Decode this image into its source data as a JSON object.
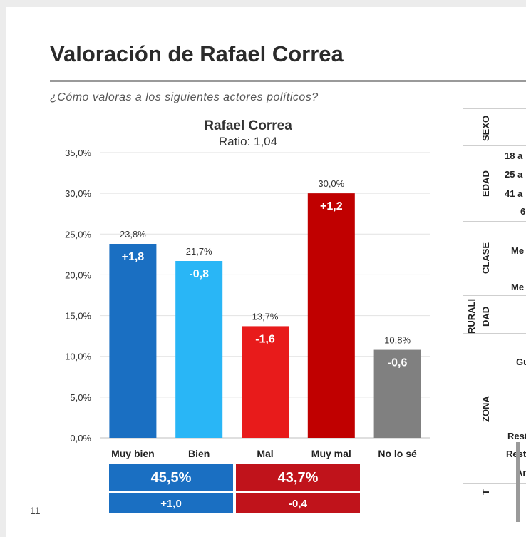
{
  "header": {
    "title": "Valoración de Rafael Correa",
    "subtitle": "¿Cómo valoras a los siguientes actores políticos?"
  },
  "chart_data": {
    "type": "bar",
    "title": "Rafael Correa",
    "subtitle": "Ratio: 1,04",
    "categories": [
      "Muy bien",
      "Bien",
      "Mal",
      "Muy mal",
      "No lo sé"
    ],
    "values": [
      23.8,
      21.7,
      13.7,
      30.0,
      10.8
    ],
    "value_labels": [
      "23,8%",
      "21,7%",
      "13,7%",
      "30,0%",
      "10,8%"
    ],
    "change_labels": [
      "+1,8",
      "-0,8",
      "-1,6",
      "+1,2",
      "-0,6"
    ],
    "colors": [
      "#1a6fc2",
      "#29b6f6",
      "#e81b1b",
      "#c00000",
      "#808080"
    ],
    "ylim": [
      0,
      35
    ],
    "yticks": [
      "0,0%",
      "5,0%",
      "10,0%",
      "15,0%",
      "20,0%",
      "25,0%",
      "30,0%",
      "35,0%"
    ],
    "grid": true
  },
  "summary": {
    "positive": {
      "total": "45,5%",
      "change": "+1,0",
      "color": "#1a6fc2"
    },
    "negative": {
      "total": "43,7%",
      "change": "-0,4",
      "color": "#c0131b"
    }
  },
  "right_table": {
    "sections": [
      "SEXO",
      "EDAD",
      "CLASE",
      "RURALI",
      "DAD",
      "ZONA",
      "T"
    ],
    "rows": [
      "18 a",
      "25 a",
      "41 a",
      "6",
      "Me",
      "Me",
      "Gu",
      "Rest",
      "Rest",
      "Ar"
    ]
  },
  "footer": {
    "page_number": "11"
  }
}
